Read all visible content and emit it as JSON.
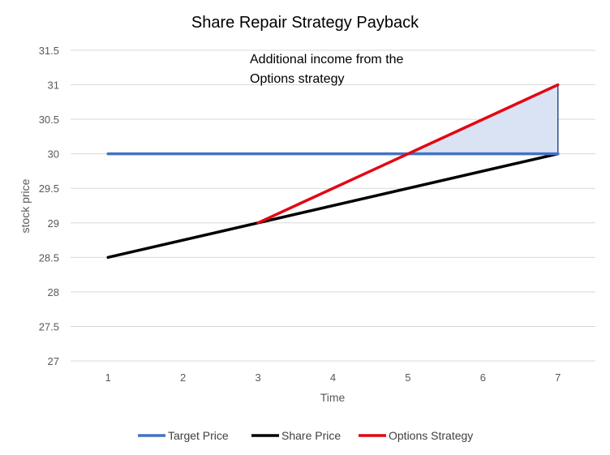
{
  "chart_data": {
    "type": "line",
    "title": "Share Repair Strategy Payback",
    "xlabel": "Time",
    "ylabel": "stock price",
    "x": [
      1,
      2,
      3,
      4,
      5,
      6,
      7
    ],
    "x_ticks": [
      "1",
      "2",
      "3",
      "4",
      "5",
      "6",
      "7"
    ],
    "ylim": [
      27,
      31.5
    ],
    "y_ticks": [
      "27",
      "27.5",
      "28",
      "28.5",
      "29",
      "29.5",
      "30",
      "30.5",
      "31",
      "31.5"
    ],
    "grid": true,
    "legend_position": "bottom",
    "series": [
      {
        "name": "Target Price",
        "color": "#4472C4",
        "x": [
          1,
          7
        ],
        "values": [
          30,
          30
        ]
      },
      {
        "name": "Share Price",
        "color": "#000000",
        "x": [
          1,
          7
        ],
        "values": [
          28.5,
          30
        ]
      },
      {
        "name": "Options Strategy",
        "color": "#E30613",
        "x": [
          3,
          7
        ],
        "values": [
          29,
          31
        ]
      }
    ],
    "shaded_region": {
      "fill": "#DAE3F3",
      "stroke": "#2F528F",
      "points": [
        [
          5,
          30
        ],
        [
          7,
          31
        ],
        [
          7,
          30
        ]
      ]
    },
    "annotation": {
      "lines": [
        "Additional income from the",
        "Options strategy"
      ]
    }
  }
}
